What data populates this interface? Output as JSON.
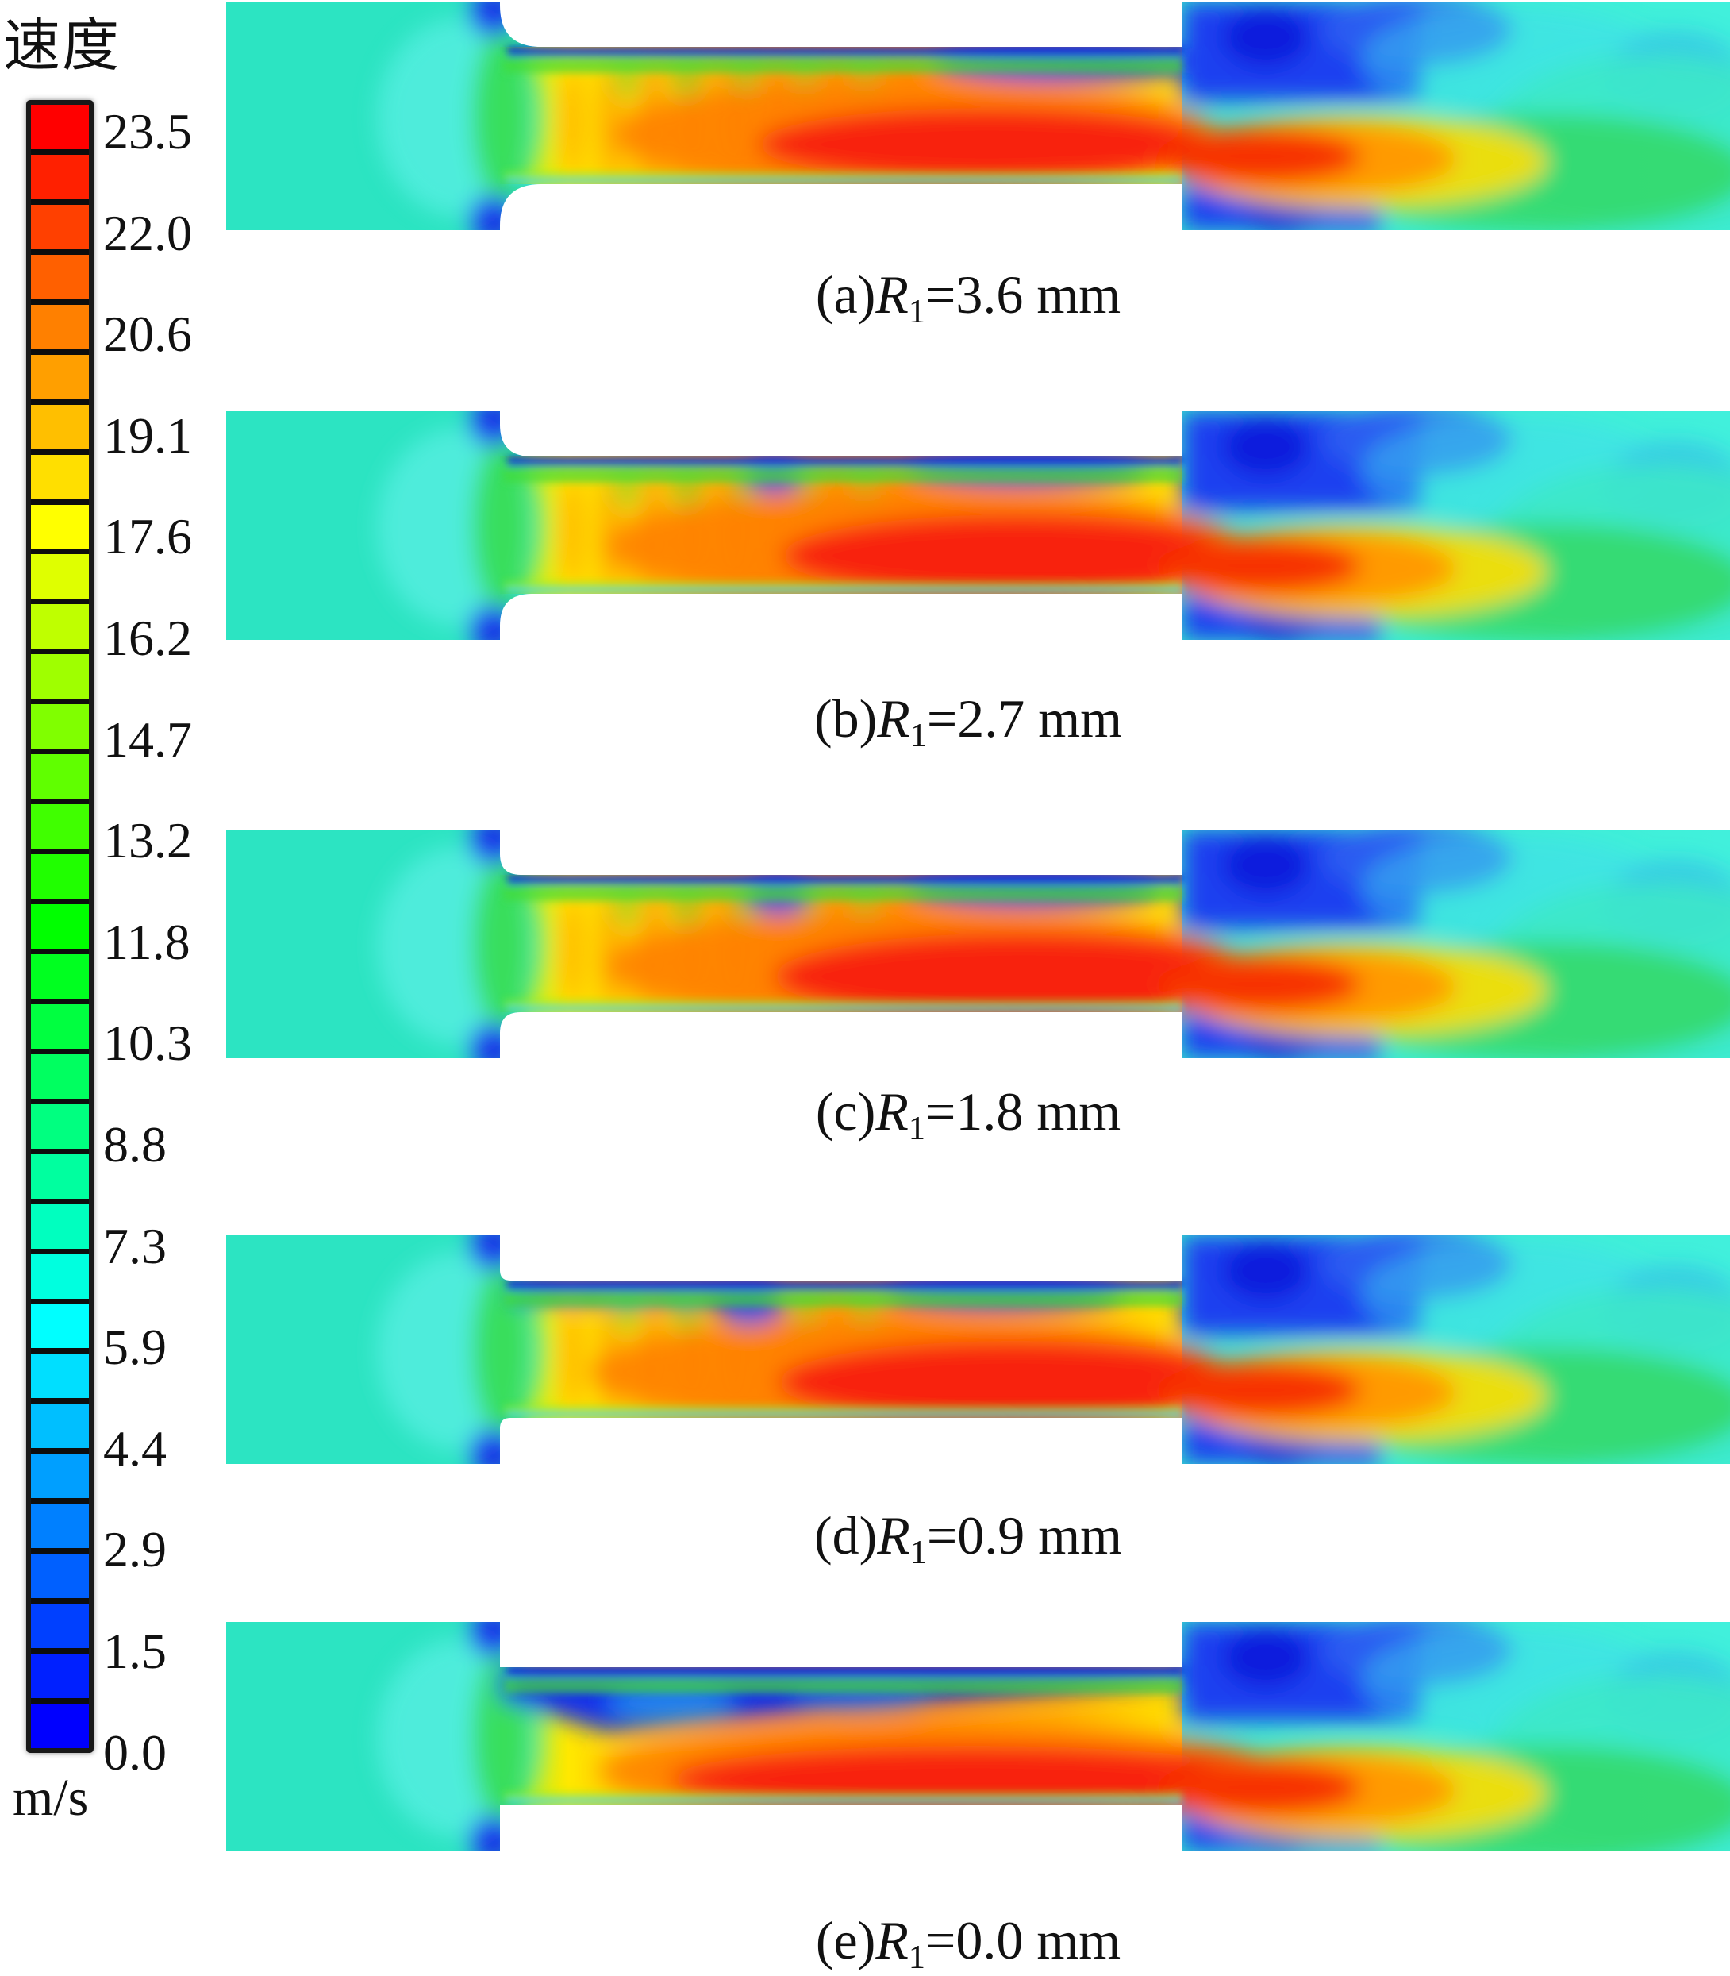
{
  "legend": {
    "title": "速度",
    "unit": "m/s",
    "labels": [
      "23.5",
      "22.0",
      "20.6",
      "19.1",
      "17.6",
      "16.2",
      "14.7",
      "13.2",
      "11.8",
      "10.3",
      "8.8",
      "7.3",
      "5.9",
      "4.4",
      "2.9",
      "1.5",
      "0.0"
    ]
  },
  "captions": {
    "a": {
      "prefix": "(a)",
      "symbol": "R",
      "sub": "1",
      "rest": "=3.6 mm"
    },
    "b": {
      "prefix": "(b)",
      "symbol": "R",
      "sub": "1",
      "rest": "=2.7 mm"
    },
    "c": {
      "prefix": "(c)",
      "symbol": "R",
      "sub": "1",
      "rest": "=1.8 mm"
    },
    "d": {
      "prefix": "(d)",
      "symbol": "R",
      "sub": "1",
      "rest": "=0.9 mm"
    },
    "e": {
      "prefix": "(e)",
      "symbol": "R",
      "sub": "1",
      "rest": "=0.0 mm"
    }
  },
  "chart_data": {
    "type": "heatmap",
    "title": "速度 (velocity contour fields)",
    "unit": "m/s",
    "colormap": "rainbow, red = high velocity, blue = low velocity, discrete filled contour bands",
    "colorbar_levels": [
      23.5,
      22.0,
      20.6,
      19.1,
      17.6,
      16.2,
      14.7,
      13.2,
      11.8,
      10.3,
      8.8,
      7.3,
      5.9,
      4.4,
      2.9,
      1.5,
      0.0
    ],
    "value_range": [
      0.0,
      23.5
    ],
    "legend_position": "left",
    "panels": [
      {
        "id": "a",
        "label": "(a)R1=3.6 mm",
        "R1_mm": 3.6
      },
      {
        "id": "b",
        "label": "(b)R1=2.7 mm",
        "R1_mm": 2.7
      },
      {
        "id": "c",
        "label": "(c)R1=1.8 mm",
        "R1_mm": 1.8
      },
      {
        "id": "d",
        "label": "(d)R1=0.9 mm",
        "R1_mm": 0.9
      },
      {
        "id": "e",
        "label": "(e)R1=0.0 mm",
        "R1_mm": 0.0
      }
    ],
    "description": "Five CFD velocity contour panels of flow through a sudden-contraction channel (inlet chamber, narrow throttle channel, outlet chamber). Inlet chamber uniform ~7-9 m/s (teal); high-velocity orange/red jet (~20-24 m/s) in the channel; low-velocity blue recirculation zones along channel top wall and in outlet-chamber corners; jet decays to green/cyan downstream. Inlet corner rounding radius R1 decreases from 3.6 mm (a) to 0.0 mm (e); with sharp corner (e) a large blue separation zone forms along the channel top wall."
  }
}
